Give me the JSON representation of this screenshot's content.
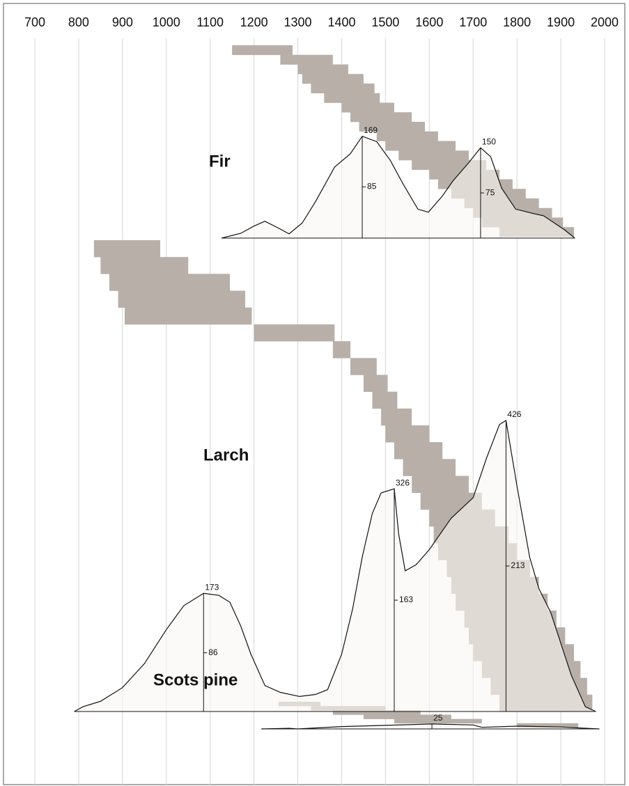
{
  "chart_data": [
    {
      "type": "line",
      "title": "Fir",
      "color": "#111111",
      "span_color": "#b8afa9",
      "fill": "#faf7f4",
      "grid": true,
      "xlim": [
        700,
        2000
      ],
      "xticks": [
        700,
        800,
        900,
        1000,
        1100,
        1200,
        1300,
        1400,
        1500,
        1600,
        1700,
        1800,
        1900,
        2000
      ],
      "ylim": [
        0,
        320
      ],
      "x": [
        1126,
        1170,
        1200,
        1225,
        1260,
        1280,
        1310,
        1340,
        1384,
        1420,
        1447,
        1480,
        1511,
        1540,
        1574,
        1598,
        1630,
        1654,
        1690,
        1717,
        1740,
        1765,
        1797,
        1830,
        1861,
        1908,
        1932
      ],
      "values": [
        0,
        8,
        20,
        28,
        15,
        7,
        25,
        60,
        118,
        140,
        169,
        160,
        129,
        90,
        48,
        43,
        70,
        95,
        125,
        150,
        135,
        83,
        48,
        42,
        37,
        14,
        0
      ],
      "spans": [
        [
          1150,
          1288
        ],
        [
          1260,
          1380
        ],
        [
          1300,
          1415
        ],
        [
          1310,
          1450
        ],
        [
          1330,
          1475
        ],
        [
          1360,
          1487
        ],
        [
          1400,
          1520
        ],
        [
          1420,
          1560
        ],
        [
          1440,
          1590
        ],
        [
          1480,
          1620
        ],
        [
          1500,
          1660
        ],
        [
          1530,
          1690
        ],
        [
          1560,
          1730
        ],
        [
          1600,
          1760
        ],
        [
          1620,
          1790
        ],
        [
          1650,
          1820
        ],
        [
          1680,
          1850
        ],
        [
          1700,
          1880
        ],
        [
          1720,
          1905
        ],
        [
          1760,
          1930
        ]
      ],
      "annotations": [
        {
          "x": 1447,
          "value": 169,
          "half": 85
        },
        {
          "x": 1717,
          "value": 150,
          "half": 75
        }
      ]
    },
    {
      "type": "line",
      "title": "Larch",
      "color": "#111111",
      "span_color": "#b8afa9",
      "fill": "#faf7f4",
      "grid": true,
      "xlim": [
        700,
        2000
      ],
      "xticks": [
        700,
        800,
        900,
        1000,
        1100,
        1200,
        1300,
        1400,
        1500,
        1600,
        1700,
        1800,
        1900,
        2000
      ],
      "ylim": [
        0,
        690
      ],
      "x": [
        790,
        810,
        850,
        900,
        950,
        1000,
        1040,
        1085,
        1120,
        1145,
        1170,
        1193,
        1225,
        1260,
        1304,
        1340,
        1368,
        1400,
        1425,
        1447,
        1470,
        1490,
        1520,
        1530,
        1545,
        1570,
        1600,
        1650,
        1700,
        1730,
        1760,
        1775,
        1800,
        1829,
        1850,
        1877,
        1900,
        1924,
        1956,
        1980
      ],
      "values": [
        0,
        7,
        15,
        35,
        70,
        120,
        155,
        173,
        170,
        160,
        125,
        84,
        38,
        28,
        22,
        25,
        32,
        84,
        150,
        226,
        290,
        320,
        326,
        260,
        206,
        215,
        237,
        283,
        313,
        370,
        420,
        426,
        330,
        226,
        180,
        145,
        100,
        53,
        7,
        0
      ],
      "spans": [
        [
          835,
          986
        ],
        [
          850,
          1050
        ],
        [
          870,
          1145
        ],
        [
          890,
          1180
        ],
        [
          905,
          1195
        ],
        [
          1200,
          1384
        ],
        [
          1380,
          1420
        ],
        [
          1420,
          1480
        ],
        [
          1450,
          1505
        ],
        [
          1470,
          1527
        ],
        [
          1490,
          1560
        ],
        [
          1500,
          1600
        ],
        [
          1520,
          1630
        ],
        [
          1540,
          1660
        ],
        [
          1560,
          1690
        ],
        [
          1580,
          1720
        ],
        [
          1600,
          1750
        ],
        [
          1610,
          1781
        ],
        [
          1620,
          1800
        ],
        [
          1640,
          1830
        ],
        [
          1650,
          1850
        ],
        [
          1660,
          1870
        ],
        [
          1680,
          1890
        ],
        [
          1690,
          1910
        ],
        [
          1700,
          1930
        ],
        [
          1720,
          1945
        ],
        [
          1740,
          1960
        ],
        [
          1760,
          1972
        ]
      ],
      "annotations": [
        {
          "x": 1085,
          "value": 173,
          "half": 86
        },
        {
          "x": 1520,
          "value": 326,
          "half": 163
        },
        {
          "x": 1775,
          "value": 426,
          "half": 213
        }
      ]
    },
    {
      "type": "line",
      "title": "Scots pine",
      "color": "#111111",
      "span_color": "#b8afa9",
      "fill": "#faf7f4",
      "grid": true,
      "xlim": [
        700,
        2000
      ],
      "xticks": [
        700,
        800,
        900,
        1000,
        1100,
        1200,
        1300,
        1400,
        1500,
        1600,
        1700,
        1800,
        1900,
        2000
      ],
      "ylim": [
        0,
        130
      ],
      "x": [
        1217,
        1280,
        1300,
        1400,
        1500,
        1606,
        1700,
        1720,
        1800,
        1900,
        1950,
        1988
      ],
      "values": [
        0,
        3,
        0,
        12,
        18,
        25,
        20,
        8,
        14,
        10,
        4,
        0
      ],
      "spans": [
        [
          1256,
          1352
        ],
        [
          1330,
          1500
        ],
        [
          1380,
          1580
        ],
        [
          1450,
          1650
        ],
        [
          1520,
          1720
        ],
        [
          1800,
          1940
        ]
      ],
      "annotations": [
        {
          "x": 1606,
          "value": 25
        }
      ]
    }
  ]
}
